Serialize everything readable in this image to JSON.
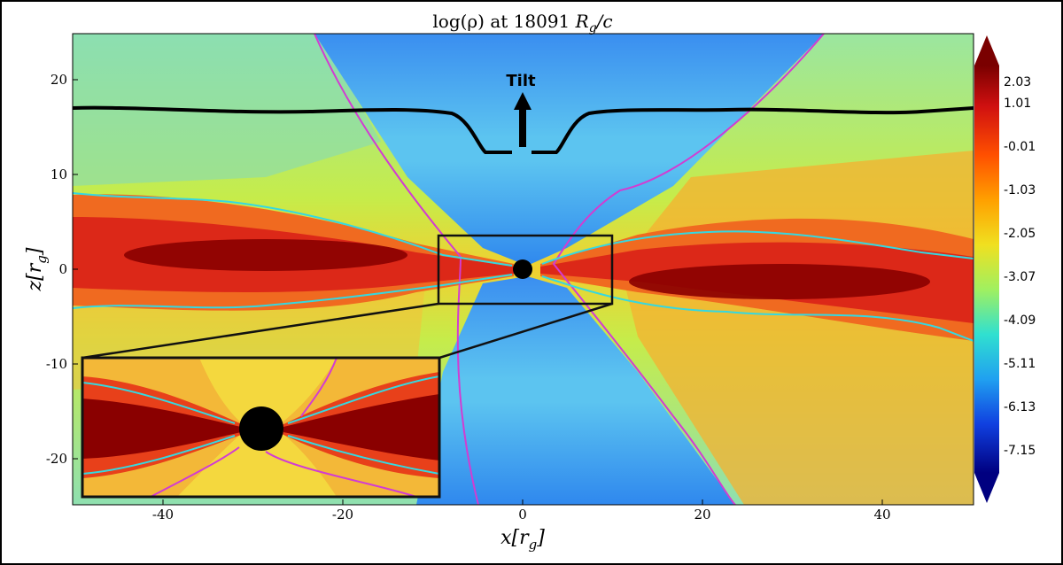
{
  "figure": {
    "title_prefix": "log(ρ) at 18091 ",
    "title_var": "R",
    "title_sub": "g",
    "title_suffix": "/c",
    "xlabel_main": "x[r",
    "xlabel_sub": "g",
    "xlabel_end": "]",
    "ylabel_main": "z[r",
    "ylabel_sub": "g",
    "ylabel_end": "]",
    "x_ticks": [
      "-40",
      "-20",
      "0",
      "20",
      "40"
    ],
    "y_ticks": [
      "20",
      "10",
      "0",
      "-10",
      "-20"
    ],
    "annotation_tilt": "Tilt",
    "colorbar_ticks": [
      "2.03",
      "1.01",
      "-0.01",
      "-1.03",
      "-2.05",
      "-3.07",
      "-4.09",
      "-5.11",
      "-6.13",
      "-7.15"
    ]
  },
  "colors": {
    "disk_core": "#8a0000",
    "disk_mid": "#e8281a",
    "disk_outer": "#f5a020",
    "background_field": "#bfe84a",
    "jet_funnel": "#3fa0f0",
    "contour_cyan": "#35d8e0",
    "contour_magenta": "#d23cd2",
    "tilt_line": "#000000"
  }
}
